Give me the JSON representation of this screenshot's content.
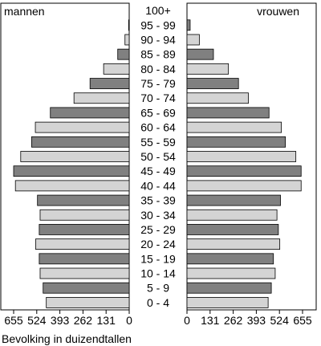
{
  "chart_data": {
    "type": "bar",
    "orientation": "horizontal",
    "layout": "population-pyramid",
    "categories": [
      "100+",
      "95 - 99",
      "90 - 94",
      "85 - 89",
      "80 - 84",
      "75 - 79",
      "70 - 74",
      "65 - 69",
      "60 - 64",
      "55 - 59",
      "50 - 54",
      "45 - 49",
      "40 - 44",
      "35 - 39",
      "30 - 34",
      "25 - 29",
      "20 - 24",
      "15 - 19",
      "10 - 14",
      "5 - 9",
      "0 - 4"
    ],
    "series": [
      {
        "name": "mannen",
        "side": "left",
        "values": [
          0,
          3,
          24,
          65,
          145,
          222,
          313,
          447,
          532,
          553,
          615,
          655,
          645,
          520,
          505,
          510,
          530,
          510,
          505,
          488,
          470
        ]
      },
      {
        "name": "vrouwen",
        "side": "right",
        "values": [
          0,
          18,
          70,
          150,
          235,
          292,
          348,
          465,
          535,
          558,
          617,
          647,
          647,
          530,
          510,
          518,
          526,
          490,
          500,
          478,
          460
        ]
      }
    ],
    "bar_colors": [
      "#d4d4d4",
      "#808080"
    ],
    "xlim": [
      0,
      655
    ],
    "xticks_left": [
      "655",
      "524",
      "393",
      "262",
      "131",
      "0"
    ],
    "xticks_right": [
      "0",
      "131",
      "262",
      "393",
      "524",
      "655"
    ],
    "xlabel": "Bevolking in duizendtallen",
    "grid": false
  }
}
